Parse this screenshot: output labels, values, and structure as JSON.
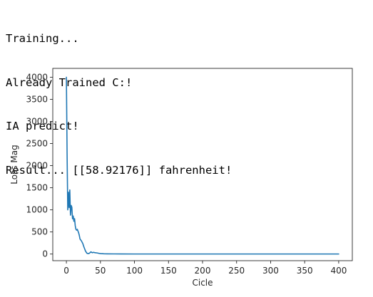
{
  "console": {
    "lines": [
      "Training...",
      "Already Trained C:!",
      "IA predict!",
      "Result... [[58.92176]] fahrenheit!"
    ]
  },
  "chart_data": {
    "type": "line",
    "title": "",
    "xlabel": "Cicle",
    "ylabel": "Loss Mag",
    "xlim": [
      -20,
      420
    ],
    "ylim": [
      -150,
      4200
    ],
    "xticks": [
      0,
      50,
      100,
      150,
      200,
      250,
      300,
      350,
      400
    ],
    "yticks": [
      0,
      500,
      1000,
      1500,
      2000,
      2500,
      3000,
      3500,
      4000
    ],
    "grid": false,
    "legend": "none",
    "series": [
      {
        "color": "#1f77b4",
        "x": [
          0,
          1,
          2,
          3,
          4,
          5,
          6,
          7,
          8,
          9,
          10,
          11,
          12,
          13,
          14,
          15,
          16,
          17,
          18,
          19,
          20,
          22,
          24,
          26,
          28,
          30,
          32,
          34,
          36,
          38,
          40,
          42,
          45,
          48,
          50,
          55,
          60,
          70,
          80,
          100,
          150,
          200,
          250,
          300,
          350,
          400
        ],
        "y": [
          4000,
          2300,
          1000,
          1400,
          1050,
          1450,
          880,
          1100,
          1060,
          800,
          860,
          740,
          800,
          640,
          560,
          540,
          560,
          520,
          480,
          420,
          340,
          300,
          240,
          150,
          70,
          20,
          10,
          20,
          50,
          30,
          40,
          30,
          25,
          15,
          10,
          6,
          4,
          3,
          2,
          1,
          1,
          1,
          1,
          1,
          1,
          1
        ]
      }
    ]
  }
}
